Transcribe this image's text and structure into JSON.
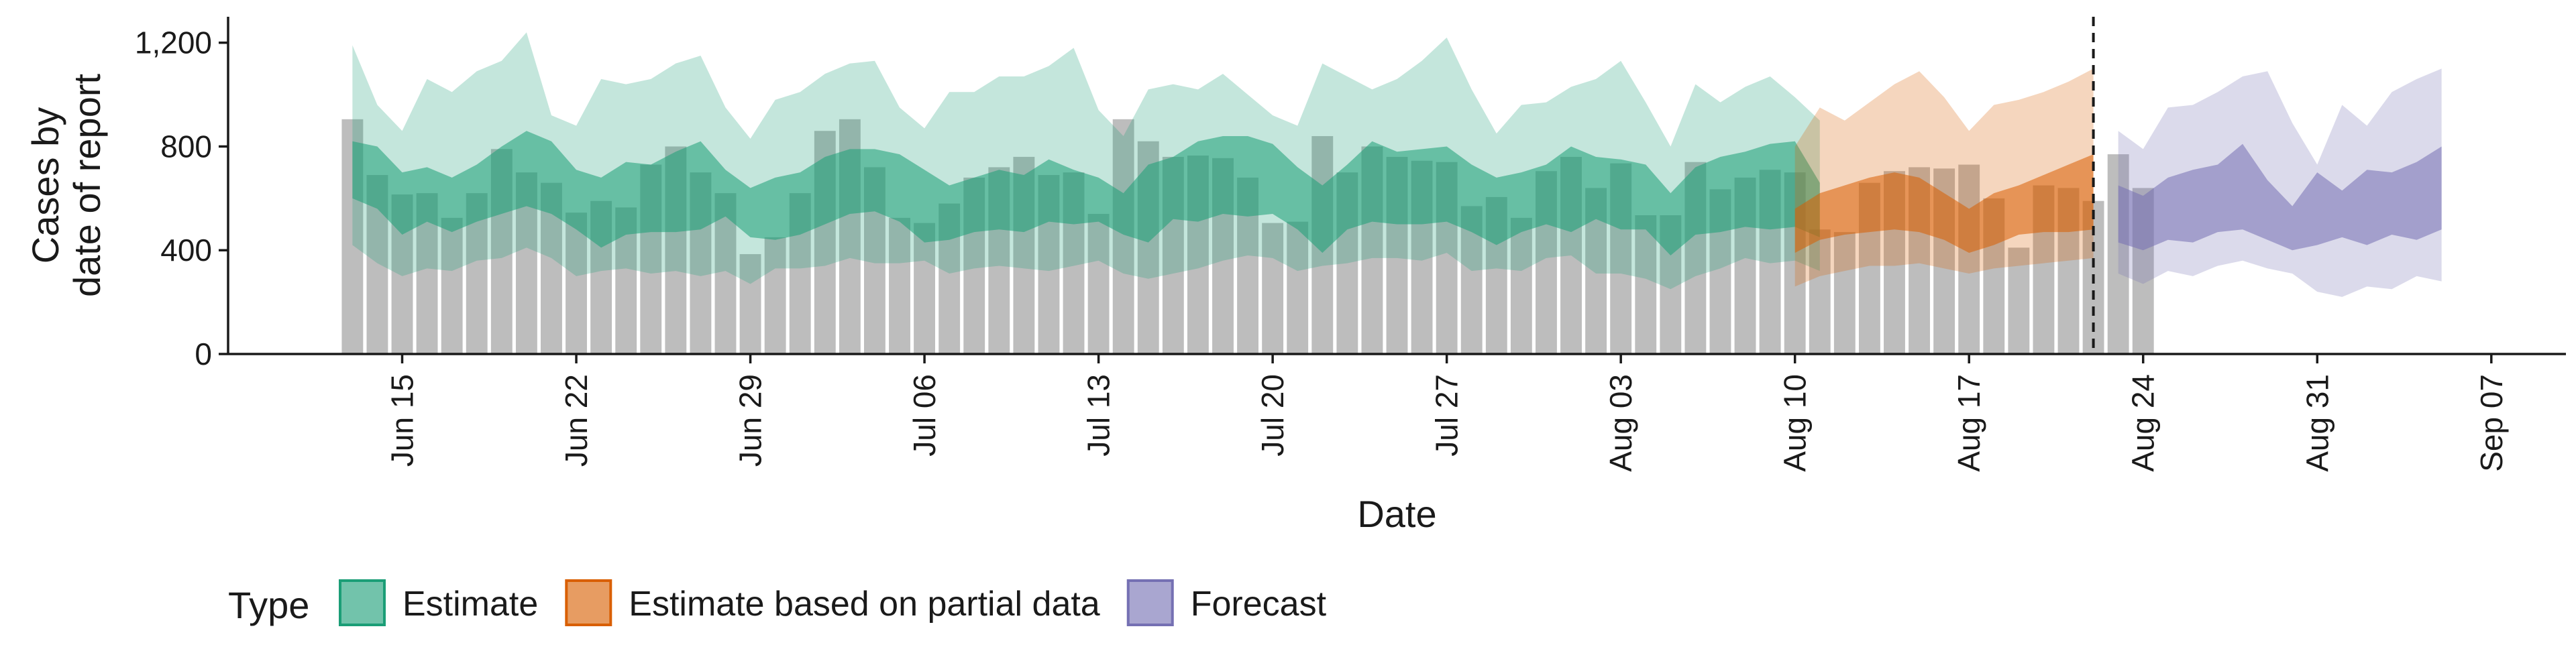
{
  "chart_data": {
    "type": "area",
    "xlabel": "Date",
    "ylabel_lines": [
      "Cases by",
      "date of report"
    ],
    "ylim": [
      0,
      1300
    ],
    "yticks": [
      0,
      400,
      800,
      1200
    ],
    "ytick_labels": [
      "0",
      "400",
      "800",
      "1,200"
    ],
    "xlim": [
      "2021-06-08",
      "2021-09-10"
    ],
    "xticks": [
      "2021-06-15",
      "2021-06-22",
      "2021-06-29",
      "2021-07-06",
      "2021-07-13",
      "2021-07-20",
      "2021-07-27",
      "2021-08-03",
      "2021-08-10",
      "2021-08-17",
      "2021-08-24",
      "2021-08-31",
      "2021-09-07"
    ],
    "xtick_labels": [
      "Jun 15",
      "Jun 22",
      "Jun 29",
      "Jul 06",
      "Jul 13",
      "Jul 20",
      "Jul 27",
      "Aug 03",
      "Aug 10",
      "Aug 17",
      "Aug 24",
      "Aug 31",
      "Sep 07"
    ],
    "cutoff_date": "2021-08-22",
    "reported_start": "2021-06-13",
    "reported_cases": [
      905,
      690,
      615,
      620,
      525,
      620,
      790,
      700,
      660,
      545,
      590,
      565,
      730,
      800,
      700,
      620,
      385,
      450,
      620,
      860,
      905,
      720,
      525,
      505,
      580,
      680,
      720,
      760,
      690,
      700,
      540,
      905,
      820,
      760,
      765,
      755,
      680,
      505,
      510,
      840,
      700,
      800,
      760,
      745,
      740,
      570,
      605,
      525,
      705,
      760,
      640,
      735,
      535,
      535,
      740,
      635,
      680,
      710,
      700,
      480,
      470,
      660,
      705,
      720,
      715,
      730,
      600,
      410,
      650,
      640,
      590,
      770,
      640
    ],
    "series": [
      {
        "name": "Estimate",
        "color": "#1b9e77",
        "start": "2021-06-13",
        "lower90": [
          420,
          350,
          300,
          330,
          320,
          360,
          370,
          410,
          370,
          300,
          320,
          330,
          310,
          320,
          300,
          320,
          270,
          330,
          330,
          340,
          370,
          350,
          350,
          360,
          310,
          330,
          340,
          330,
          320,
          340,
          360,
          310,
          290,
          310,
          330,
          360,
          380,
          370,
          320,
          340,
          350,
          370,
          370,
          360,
          390,
          320,
          330,
          320,
          370,
          380,
          310,
          310,
          290,
          250,
          300,
          330,
          370,
          350,
          360,
          320
        ],
        "lower50": [
          600,
          560,
          460,
          510,
          470,
          510,
          540,
          570,
          540,
          480,
          410,
          460,
          470,
          470,
          480,
          530,
          450,
          440,
          460,
          500,
          540,
          550,
          510,
          430,
          440,
          470,
          480,
          470,
          510,
          500,
          510,
          460,
          430,
          520,
          510,
          540,
          530,
          540,
          480,
          390,
          480,
          510,
          500,
          500,
          510,
          470,
          420,
          470,
          500,
          470,
          520,
          480,
          480,
          380,
          460,
          470,
          490,
          480,
          490,
          450
        ],
        "upper50": [
          820,
          800,
          700,
          720,
          680,
          730,
          800,
          860,
          820,
          710,
          680,
          740,
          730,
          780,
          820,
          710,
          640,
          680,
          700,
          760,
          790,
          790,
          770,
          710,
          650,
          680,
          710,
          690,
          750,
          710,
          680,
          620,
          730,
          760,
          820,
          840,
          840,
          810,
          720,
          650,
          730,
          820,
          780,
          790,
          800,
          730,
          680,
          700,
          730,
          800,
          760,
          750,
          730,
          620,
          720,
          760,
          780,
          810,
          820,
          660
        ],
        "upper90": [
          1190,
          960,
          860,
          1060,
          1010,
          1090,
          1130,
          1240,
          920,
          880,
          1060,
          1040,
          1060,
          1120,
          1150,
          950,
          830,
          980,
          1010,
          1080,
          1120,
          1130,
          950,
          870,
          1010,
          1010,
          1070,
          1070,
          1110,
          1180,
          940,
          840,
          1020,
          1040,
          1020,
          1080,
          1000,
          920,
          880,
          1120,
          1070,
          1020,
          1060,
          1130,
          1220,
          1020,
          850,
          960,
          970,
          1030,
          1060,
          1130,
          970,
          800,
          1040,
          970,
          1030,
          1070,
          990,
          900
        ]
      },
      {
        "name": "Estimate based on partial data",
        "color": "#d95f02",
        "start": "2021-08-10",
        "lower90": [
          260,
          300,
          320,
          340,
          340,
          350,
          330,
          310,
          330,
          340,
          350,
          360,
          370
        ],
        "lower50": [
          390,
          440,
          460,
          470,
          480,
          470,
          440,
          390,
          420,
          460,
          470,
          470,
          480
        ],
        "upper50": [
          560,
          620,
          650,
          680,
          700,
          680,
          620,
          560,
          620,
          650,
          690,
          730,
          770
        ],
        "upper90": [
          800,
          950,
          900,
          970,
          1040,
          1090,
          990,
          860,
          960,
          980,
          1010,
          1050,
          1100
        ]
      },
      {
        "name": "Forecast",
        "color": "#7570b3",
        "start": "2021-08-23",
        "lower90": [
          310,
          270,
          320,
          300,
          340,
          360,
          330,
          310,
          240,
          220,
          260,
          250,
          300,
          280
        ],
        "lower50": [
          430,
          400,
          440,
          430,
          470,
          480,
          440,
          400,
          420,
          450,
          420,
          460,
          440,
          480
        ],
        "upper50": [
          650,
          610,
          680,
          710,
          730,
          810,
          670,
          570,
          700,
          630,
          710,
          700,
          740,
          800
        ],
        "upper90": [
          860,
          790,
          950,
          960,
          1010,
          1070,
          1090,
          890,
          730,
          960,
          880,
          1010,
          1060,
          1100
        ]
      }
    ],
    "legend_title": "Type",
    "legend_position": "bottom",
    "grid": false
  }
}
